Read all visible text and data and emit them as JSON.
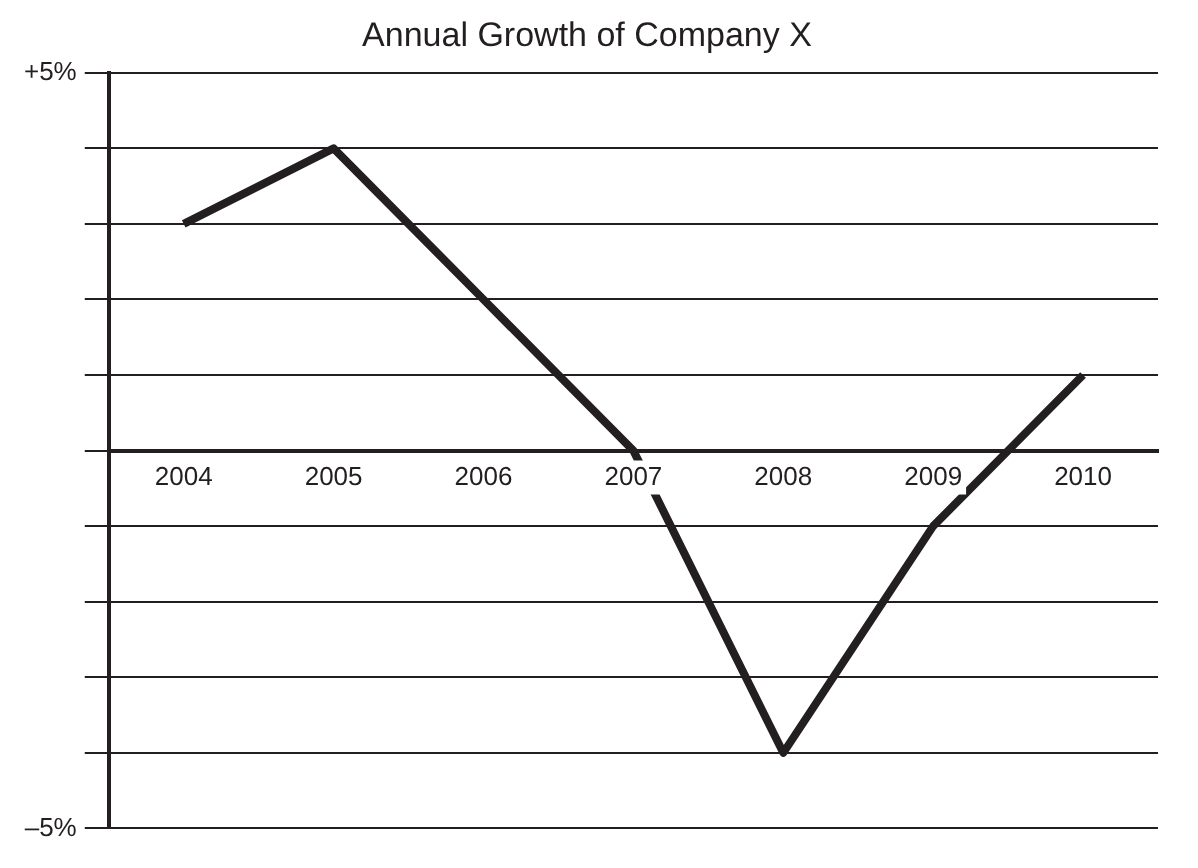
{
  "chart_data": {
    "type": "line",
    "title": "Annual Growth of Company X",
    "categories": [
      "2004",
      "2005",
      "2006",
      "2007",
      "2008",
      "2009",
      "2010"
    ],
    "series": [
      {
        "color": "#231f20",
        "values": [
          3,
          4,
          2,
          0,
          -4,
          -1,
          1
        ]
      }
    ],
    "ylim": [
      -5,
      5
    ],
    "yticks": [
      {
        "value": 5,
        "label": "+5%"
      },
      {
        "value": 4,
        "label": null
      },
      {
        "value": 3,
        "label": null
      },
      {
        "value": 2,
        "label": null
      },
      {
        "value": 1,
        "label": null
      },
      {
        "value": 0,
        "label": null
      },
      {
        "value": -1,
        "label": null
      },
      {
        "value": -2,
        "label": null
      },
      {
        "value": -3,
        "label": null
      },
      {
        "value": -4,
        "label": null
      },
      {
        "value": -5,
        "label": "–5%"
      }
    ],
    "grid": "y",
    "legend": false,
    "marker": "none",
    "line_style": "solid"
  }
}
